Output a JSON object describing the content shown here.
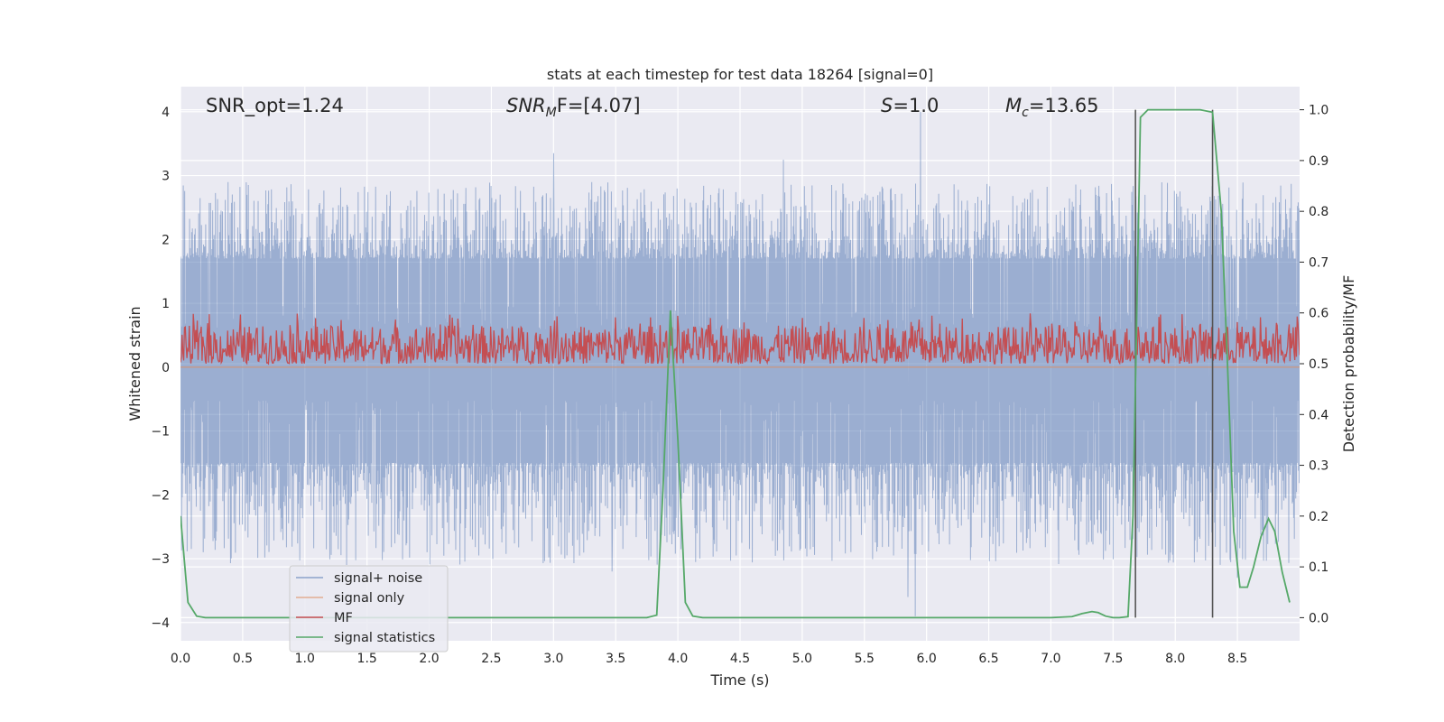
{
  "chart_data": {
    "type": "line",
    "title": "stats at each timestep for test data 18264 [signal=0]",
    "xlabel": "Time (s)",
    "ylabel": "Whitened strain",
    "y2label": "Detection probability/MF",
    "xlim": [
      0.0,
      9.0
    ],
    "ylim": [
      -4.2857,
      4.3929
    ],
    "y2lim": [
      -0.0455,
      1.0455
    ],
    "x_ticks": [
      "0.0",
      "0.5",
      "1.0",
      "1.5",
      "2.0",
      "2.5",
      "3.0",
      "3.5",
      "4.0",
      "4.5",
      "5.0",
      "5.5",
      "6.0",
      "6.5",
      "7.0",
      "7.5",
      "8.0",
      "8.5"
    ],
    "y_ticks": [
      "−4",
      "−3",
      "−2",
      "−1",
      "0",
      "1",
      "2",
      "3",
      "4"
    ],
    "y2_ticks": [
      "0.0",
      "0.1",
      "0.2",
      "0.3",
      "0.4",
      "0.5",
      "0.6",
      "0.7",
      "0.8",
      "0.9",
      "1.0"
    ],
    "grid": true,
    "legend_position": "lower-left",
    "annotations": {
      "snr_opt": "SNR_opt=1.24",
      "snr_mf_pre": "SNR",
      "snr_mf_sub": "M",
      "snr_mf_post": "F=[4.07]",
      "s_var": "S",
      "s_val": "=1.0",
      "mc_var": "M",
      "mc_sub": "c",
      "mc_val": "=13.65"
    },
    "colors": {
      "background": "#eaeaf2",
      "grid": "#ffffff",
      "noise": "#4c72b0",
      "signal_only": "#dd8452",
      "mf": "#c44e52",
      "statistic": "#55a868",
      "vline": "#555555"
    },
    "series": [
      {
        "name": "signal+ noise",
        "axis": "left",
        "kind": "noise",
        "band_core": [
          -1.5,
          1.7
        ],
        "typical_peak": [
          -3.1,
          2.9
        ],
        "spikes": [
          {
            "x": 3.0,
            "y": 3.35
          },
          {
            "x": 4.85,
            "y": 3.25
          },
          {
            "x": 5.95,
            "y": 4.0
          },
          {
            "x": 3.47,
            "y": -3.2
          },
          {
            "x": 5.85,
            "y": -3.6
          },
          {
            "x": 5.91,
            "y": -3.9
          },
          {
            "x": 8.27,
            "y": -2.8
          },
          {
            "x": 8.5,
            "y": -3.3
          }
        ]
      },
      {
        "name": "signal only",
        "axis": "left",
        "kind": "flat",
        "value": 0
      },
      {
        "name": "MF",
        "axis": "right",
        "kind": "noise-band",
        "range": [
          0.5,
          0.6
        ],
        "center": 0.55
      },
      {
        "name": "signal statistics",
        "axis": "right",
        "x": [
          0.0,
          0.06,
          0.13,
          0.2,
          1.0,
          2.0,
          3.0,
          3.5,
          3.75,
          3.83,
          3.88,
          3.94,
          4.0,
          4.06,
          4.12,
          4.2,
          5.0,
          6.0,
          7.0,
          7.17,
          7.25,
          7.33,
          7.38,
          7.44,
          7.5,
          7.55,
          7.62,
          7.66,
          7.72,
          7.78,
          7.85,
          8.0,
          8.2,
          8.3,
          8.37,
          8.42,
          8.47,
          8.52,
          8.58,
          8.63,
          8.69,
          8.75,
          8.8,
          8.86,
          8.92
        ],
        "values": [
          0.2,
          0.03,
          0.003,
          0.0,
          0.0,
          0.0,
          0.0,
          0.0,
          0.0,
          0.005,
          0.25,
          0.605,
          0.35,
          0.03,
          0.003,
          0.0,
          0.0,
          0.0,
          0.0,
          0.002,
          0.008,
          0.012,
          0.01,
          0.003,
          0.0,
          0.0,
          0.002,
          0.2,
          0.985,
          1.0,
          1.0,
          1.0,
          1.0,
          0.995,
          0.8,
          0.5,
          0.17,
          0.06,
          0.06,
          0.1,
          0.16,
          0.195,
          0.17,
          0.09,
          0.03
        ]
      }
    ],
    "vlines": [
      7.68,
      8.3
    ]
  }
}
